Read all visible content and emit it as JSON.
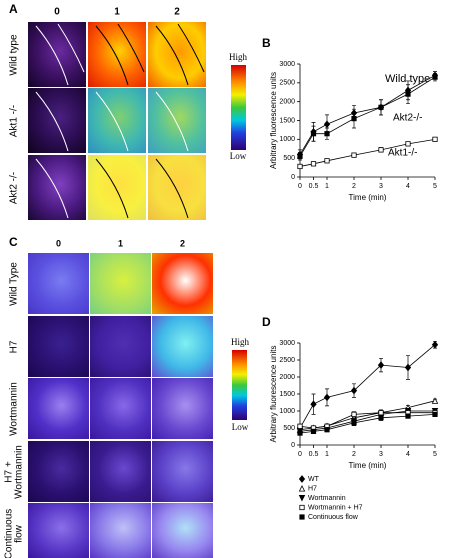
{
  "panel_a": {
    "letter": "A",
    "columns": [
      "0",
      "1",
      "2"
    ],
    "rows": [
      "Wild type",
      "Akt1 -/-",
      "Akt2 -/-"
    ],
    "scale_high": "High",
    "scale_low": "Low"
  },
  "panel_c": {
    "letter": "C",
    "columns": [
      "0",
      "1",
      "2"
    ],
    "rows": [
      "Wild Type",
      "H7",
      "Wortmannin",
      "H7 + Wortmannin",
      "Continuous flow"
    ],
    "scale_high": "High",
    "scale_low": "Low"
  },
  "chart_data": [
    {
      "type": "line",
      "label": "B",
      "ylabel": "Arbitrary fluorescence units",
      "xlabel": "Time (min)",
      "x": [
        0,
        0.5,
        1,
        2,
        3,
        4,
        5
      ],
      "xlim": [
        0,
        5
      ],
      "xticks": [
        0,
        0.5,
        1,
        2,
        3,
        4,
        5
      ],
      "ylim": [
        0,
        3000
      ],
      "yticks": [
        0,
        500,
        1000,
        1500,
        2000,
        2500,
        3000
      ],
      "legend": "inline",
      "series": [
        {
          "name": "Wild type",
          "color": "#000000",
          "marker": "diamond",
          "values": [
            600,
            1200,
            1400,
            1700,
            1850,
            2300,
            2700
          ],
          "errors": [
            120,
            250,
            250,
            200,
            200,
            250,
            100
          ]
        },
        {
          "name": "Akt2-/-",
          "color": "#000000",
          "marker": "square",
          "values": [
            550,
            1150,
            1150,
            1550,
            1850,
            2200,
            2650
          ],
          "errors": [
            100,
            200,
            150,
            250,
            200,
            250,
            100
          ]
        },
        {
          "name": "Akt1-/-",
          "color": "#000000",
          "marker": "open-square",
          "values": [
            280,
            350,
            430,
            580,
            720,
            880,
            1000
          ],
          "errors": [
            30,
            30,
            30,
            50,
            60,
            40,
            40
          ]
        }
      ]
    },
    {
      "type": "line",
      "label": "D",
      "ylabel": "Arbitrary fluorescence units",
      "xlabel": "Time (min)",
      "x": [
        0,
        0.5,
        1,
        2,
        3,
        4,
        5
      ],
      "xlim": [
        0,
        5
      ],
      "xticks": [
        0,
        0.5,
        1,
        2,
        3,
        4,
        5
      ],
      "ylim": [
        0,
        3000
      ],
      "yticks": [
        0,
        500,
        1000,
        1500,
        2000,
        2500,
        3000
      ],
      "legend": "below",
      "series": [
        {
          "name": "WT",
          "color": "#000000",
          "marker": "diamond",
          "values": [
            500,
            1200,
            1400,
            1600,
            2350,
            2280,
            2950
          ],
          "errors": [
            100,
            300,
            250,
            200,
            200,
            350,
            100
          ]
        },
        {
          "name": "H7",
          "color": "#000000",
          "marker": "open-triangle",
          "values": [
            450,
            500,
            560,
            800,
            950,
            1100,
            1300
          ],
          "errors": [
            60,
            60,
            60,
            80,
            80,
            60,
            50
          ]
        },
        {
          "name": "Wortmannin",
          "color": "#000000",
          "marker": "triangle-down",
          "values": [
            400,
            450,
            500,
            700,
            900,
            1000,
            1000
          ],
          "errors": [
            60,
            60,
            60,
            80,
            80,
            60,
            50
          ]
        },
        {
          "name": "Wortmannin + H7",
          "color": "#000000",
          "marker": "open-square",
          "values": [
            550,
            500,
            550,
            900,
            950,
            950,
            950
          ],
          "errors": [
            60,
            60,
            60,
            80,
            80,
            60,
            50
          ]
        },
        {
          "name": "Continuous flow",
          "color": "#000000",
          "marker": "square",
          "values": [
            350,
            400,
            450,
            650,
            800,
            850,
            900
          ],
          "errors": [
            60,
            60,
            60,
            80,
            80,
            60,
            50
          ]
        }
      ]
    }
  ]
}
